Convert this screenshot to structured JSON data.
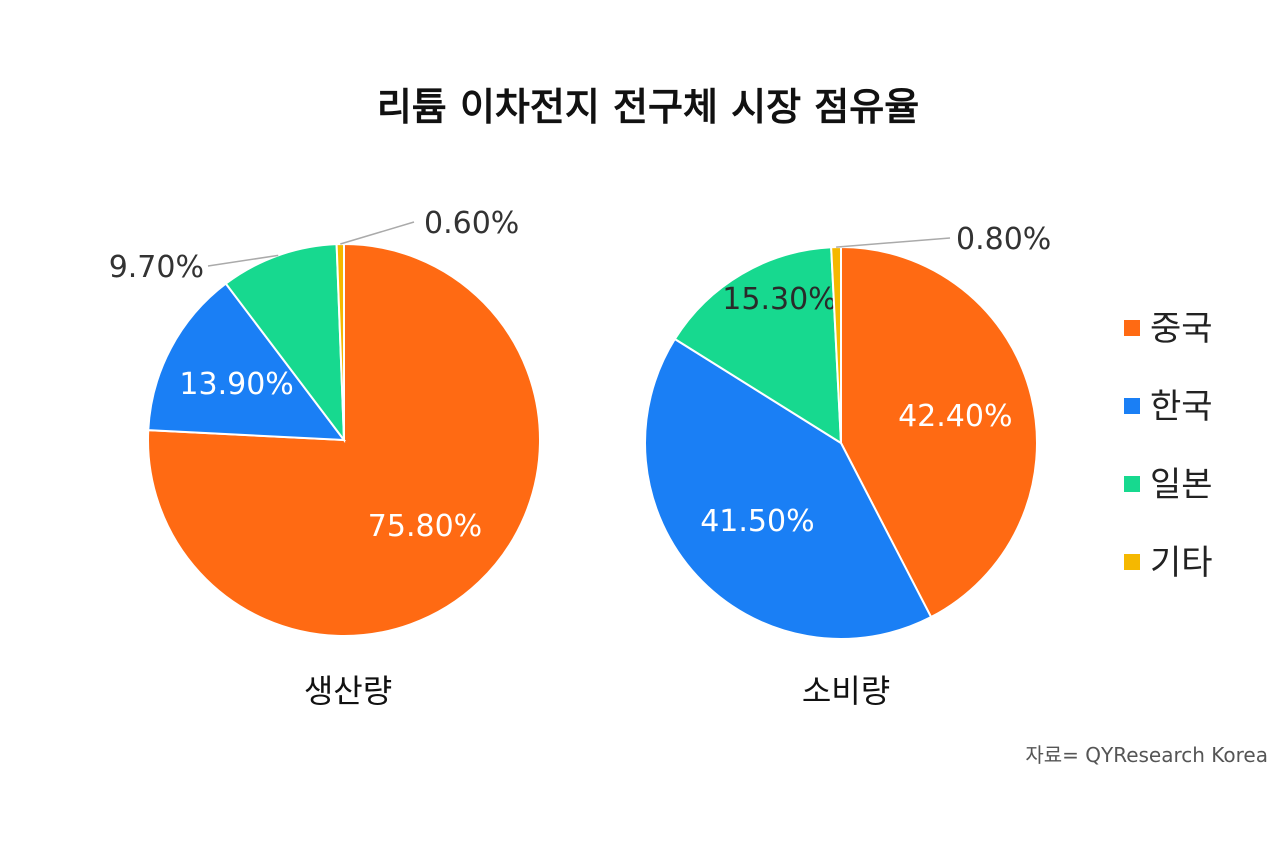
{
  "chart_data": {
    "type": "pie",
    "title": "리튬 이차전지 전구체 시장 점유율",
    "source": "자료= QYResearch Korea",
    "legend": {
      "position": "right",
      "items": [
        {
          "label": "중국",
          "color": "#FF6A13"
        },
        {
          "label": "한국",
          "color": "#1A7FF5"
        },
        {
          "label": "일본",
          "color": "#17D98F"
        },
        {
          "label": "기타",
          "color": "#F5B800"
        }
      ]
    },
    "charts": [
      {
        "subtitle": "생산량",
        "slices": [
          {
            "category": "중국",
            "value": 75.8,
            "label": "75.80%"
          },
          {
            "category": "한국",
            "value": 13.9,
            "label": "13.90%"
          },
          {
            "category": "일본",
            "value": 9.7,
            "label": "9.70%"
          },
          {
            "category": "기타",
            "value": 0.6,
            "label": "0.60%"
          }
        ]
      },
      {
        "subtitle": "소비량",
        "slices": [
          {
            "category": "중국",
            "value": 42.4,
            "label": "42.40%"
          },
          {
            "category": "한국",
            "value": 41.5,
            "label": "41.50%"
          },
          {
            "category": "일본",
            "value": 15.3,
            "label": "15.30%"
          },
          {
            "category": "기타",
            "value": 0.8,
            "label": "0.80%"
          }
        ]
      }
    ]
  }
}
